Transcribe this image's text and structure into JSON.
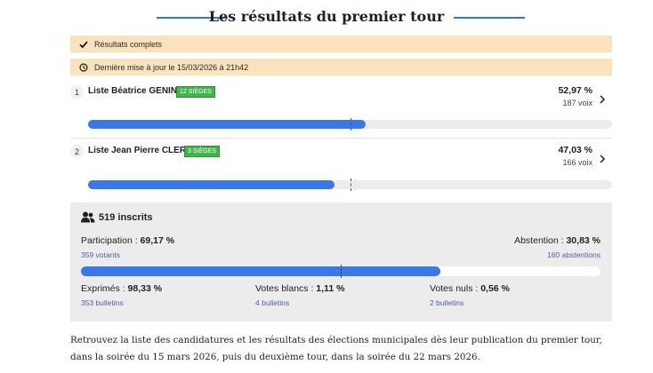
{
  "page": {
    "title": "Les résultats du premier tour"
  },
  "banners": {
    "complete": "Résultats complets",
    "updated": "Dernière mise à jour le 15/03/2026 à 21h42"
  },
  "candidates": [
    {
      "rank": "1",
      "name": "Liste Béatrice GENIN",
      "seats": "12 SIÈGES",
      "percent_label": "52,97 %",
      "votes_label": "187 voix",
      "percent": 52.97
    },
    {
      "rank": "2",
      "name": "Liste Jean Pierre CLERC",
      "seats": "3 SIÈGES",
      "percent_label": "47,03 %",
      "votes_label": "166 voix",
      "percent": 47.03
    }
  ],
  "stats": {
    "registered": "519 inscrits",
    "participation_label": "Participation : ",
    "participation_value": "69,17 %",
    "participation_sub": "359 votants",
    "participation": 69.17,
    "abstention_label": "Abstention : ",
    "abstention_value": "30,83 %",
    "abstention_sub": "160 abstentions",
    "expressed_label": "Exprimés : ",
    "expressed_value": "98,33 %",
    "expressed_sub": "353 bulletins",
    "blank_label": "Votes blancs : ",
    "blank_value": "1,11 %",
    "blank_sub": "4 bulletins",
    "null_label": "Votes nuls : ",
    "null_value": "0,56 %",
    "null_sub": "2 bulletins"
  },
  "paragraph": "Retrouvez la liste des candidatures et les résultats des élections municipales dès leur publication du premier tour, dans la soirée du 15 mars 2026, puis du deuxième tour, dans la soirée du 22 mars 2026.",
  "colors": {
    "accent": "#3b78e7",
    "seats_badge": "#41b54a",
    "banner": "#f8e3bc",
    "stats_bg": "#ececec"
  },
  "icons": {
    "complete": "check-icon",
    "updated": "clock-icon",
    "registered": "people-icon",
    "row_action": "chevron-right-icon"
  }
}
